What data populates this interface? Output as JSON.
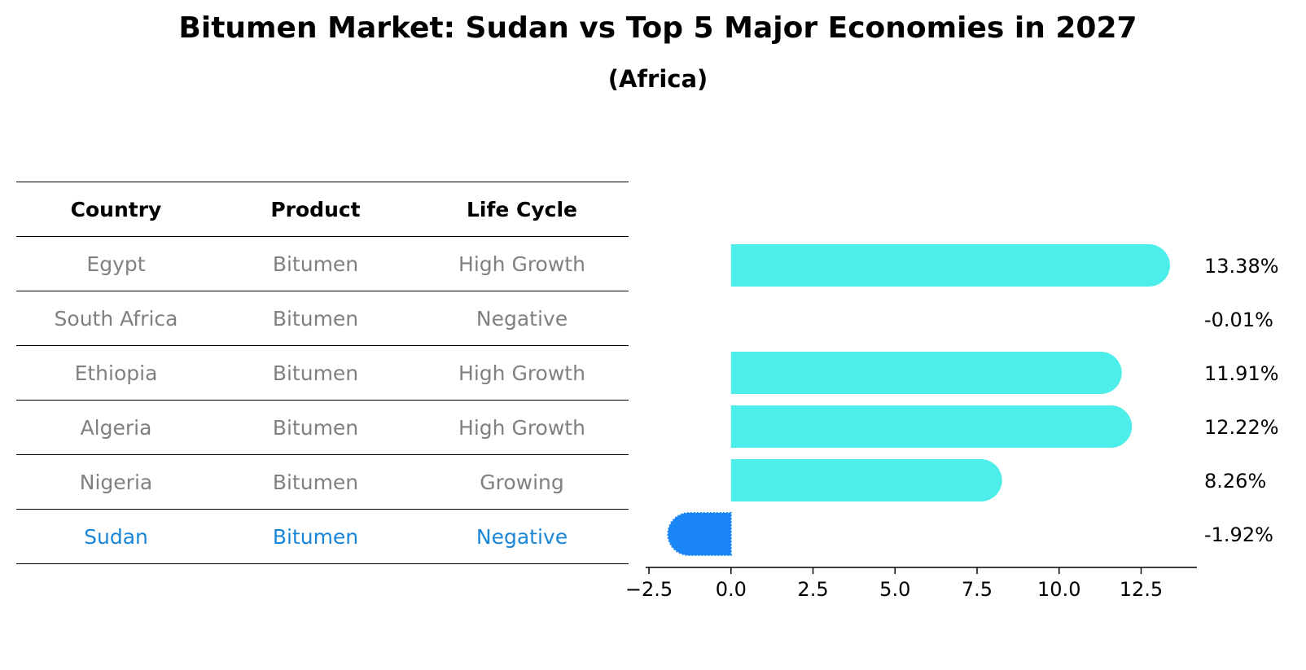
{
  "title": "Bitumen Market: Sudan vs Top 5 Major Economies in 2027",
  "subtitle": "(Africa)",
  "table": {
    "headers": [
      "Country",
      "Product",
      "Life Cycle"
    ],
    "rows": [
      {
        "country": "Egypt",
        "product": "Bitumen",
        "life_cycle": "High Growth"
      },
      {
        "country": "South Africa",
        "product": "Bitumen",
        "life_cycle": "Negative"
      },
      {
        "country": "Ethiopia",
        "product": "Bitumen",
        "life_cycle": "High Growth"
      },
      {
        "country": "Algeria",
        "product": "Bitumen",
        "life_cycle": "High Growth"
      },
      {
        "country": "Nigeria",
        "product": "Bitumen",
        "life_cycle": "Growing"
      },
      {
        "country": "Sudan",
        "product": "Bitumen",
        "life_cycle": "Negative"
      }
    ]
  },
  "colors": {
    "bar": "#4deeea",
    "highlight_bar": "#1a86f5",
    "highlight_text": "#1a86d8",
    "row_text": "#808080"
  },
  "chart_data": {
    "type": "bar",
    "orientation": "horizontal",
    "categories": [
      "Egypt",
      "South Africa",
      "Ethiopia",
      "Algeria",
      "Nigeria",
      "Sudan"
    ],
    "values": [
      13.38,
      -0.01,
      11.91,
      12.22,
      8.26,
      -1.92
    ],
    "data_labels": [
      "13.38%",
      "-0.01%",
      "11.91%",
      "12.22%",
      "8.26%",
      "-1.92%"
    ],
    "highlight": "Sudan",
    "xlim": [
      -2.6,
      14.2
    ],
    "xticks": [
      -2.5,
      0.0,
      2.5,
      5.0,
      7.5,
      10.0,
      12.5
    ],
    "xtick_labels": [
      "−2.5",
      "0.0",
      "2.5",
      "5.0",
      "7.5",
      "10.0",
      "12.5"
    ],
    "grid": false
  }
}
